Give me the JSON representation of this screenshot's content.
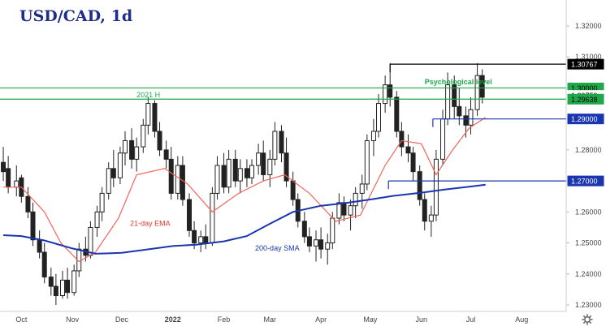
{
  "chart_data": {
    "type": "candlestick",
    "title": "USD/CAD, 1d",
    "ylim": [
      1.227,
      1.324
    ],
    "y_ticks": [
      "1.32000",
      "1.31000",
      "1.30000",
      "1.29000",
      "1.28000",
      "1.27000",
      "1.26000",
      "1.25000",
      "1.24000",
      "1.23000"
    ],
    "x_ticks": [
      "Oct",
      "Nov",
      "Dec",
      "2022",
      "Feb",
      "Mar",
      "Apr",
      "May",
      "Jun",
      "Jul",
      "Aug"
    ],
    "price_tags": [
      {
        "label": "1.30767",
        "value": 1.30767,
        "style": "dark"
      },
      {
        "label": "1.30000",
        "value": 1.3,
        "style": "green"
      },
      {
        "label": "1.29759",
        "value": 1.29759,
        "style": "plain"
      },
      {
        "label": "1.29638",
        "value": 1.29638,
        "style": "green"
      },
      {
        "label": "1.29000",
        "value": 1.29,
        "style": "blue"
      },
      {
        "label": "1.27000",
        "value": 1.27,
        "style": "blue"
      }
    ],
    "levels": [
      {
        "value": 1.30767,
        "color": "#000000",
        "from": "2022-05-13",
        "to": "end"
      },
      {
        "value": 1.3,
        "color": "#1ea84a",
        "from": "start",
        "to": "end"
      },
      {
        "value": 1.29638,
        "color": "#1ea84a",
        "from": "start",
        "to": "end"
      },
      {
        "value": 1.29,
        "color": "#1a35b0",
        "from": "2022-06-08",
        "to": "end"
      },
      {
        "value": 1.27,
        "color": "#1a35b0",
        "from": "2022-05-12",
        "to": "end"
      }
    ],
    "annotations": [
      {
        "text": "Psychological level",
        "color": "#1ea84a",
        "date": "2022-07-14",
        "value": 1.3012
      },
      {
        "text": "2021 H",
        "color": "#1ea84a",
        "date": "2021-12-10",
        "value": 1.297
      },
      {
        "text": "21-day EMA",
        "color": "#e03c31",
        "date": "2021-12-06",
        "value": 1.2555
      },
      {
        "text": "200-day SMA",
        "color": "#1a35b0",
        "date": "2022-02-20",
        "value": 1.2475
      }
    ],
    "series": [
      {
        "name": "21-day EMA",
        "color": "#f2655a",
        "x": [
          "2021-09-20",
          "2021-10-01",
          "2021-10-15",
          "2021-10-25",
          "2021-11-05",
          "2021-11-15",
          "2021-11-29",
          "2021-12-10",
          "2021-12-27",
          "2022-01-10",
          "2022-01-25",
          "2022-02-10",
          "2022-02-25",
          "2022-03-10",
          "2022-03-25",
          "2022-04-10",
          "2022-04-25",
          "2022-05-10",
          "2022-05-20",
          "2022-06-01",
          "2022-06-10",
          "2022-06-20",
          "2022-06-30",
          "2022-07-10"
        ],
        "values": [
          1.268,
          1.268,
          1.26,
          1.25,
          1.244,
          1.247,
          1.258,
          1.272,
          1.274,
          1.269,
          1.26,
          1.266,
          1.27,
          1.272,
          1.266,
          1.257,
          1.259,
          1.275,
          1.283,
          1.282,
          1.272,
          1.28,
          1.287,
          1.2905
        ]
      },
      {
        "name": "200-day SMA",
        "color": "#1a35b0",
        "x": [
          "2021-09-20",
          "2021-10-01",
          "2021-10-15",
          "2021-11-01",
          "2021-11-15",
          "2021-12-01",
          "2021-12-15",
          "2022-01-01",
          "2022-01-15",
          "2022-02-01",
          "2022-02-15",
          "2022-03-01",
          "2022-03-15",
          "2022-04-01",
          "2022-04-15",
          "2022-05-01",
          "2022-05-15",
          "2022-06-01",
          "2022-06-15",
          "2022-07-01",
          "2022-07-10"
        ],
        "values": [
          1.2525,
          1.2522,
          1.2508,
          1.2482,
          1.2465,
          1.2468,
          1.2478,
          1.249,
          1.2494,
          1.2505,
          1.2522,
          1.2562,
          1.26,
          1.262,
          1.2628,
          1.264,
          1.2652,
          1.2662,
          1.2672,
          1.2682,
          1.2688
        ]
      }
    ],
    "candles": [
      [
        "2021-09-20",
        1.276,
        1.281,
        1.27,
        1.273
      ],
      [
        "2021-09-23",
        1.274,
        1.278,
        1.266,
        1.268
      ],
      [
        "2021-09-28",
        1.268,
        1.275,
        1.265,
        1.27
      ],
      [
        "2021-10-01",
        1.271,
        1.272,
        1.263,
        1.265
      ],
      [
        "2021-10-05",
        1.265,
        1.268,
        1.258,
        1.26
      ],
      [
        "2021-10-08",
        1.26,
        1.263,
        1.249,
        1.251
      ],
      [
        "2021-10-12",
        1.251,
        1.254,
        1.245,
        1.247
      ],
      [
        "2021-10-15",
        1.247,
        1.25,
        1.237,
        1.239
      ],
      [
        "2021-10-19",
        1.239,
        1.242,
        1.233,
        1.236
      ],
      [
        "2021-10-22",
        1.236,
        1.24,
        1.23,
        1.233
      ],
      [
        "2021-10-26",
        1.233,
        1.241,
        1.232,
        1.238
      ],
      [
        "2021-10-29",
        1.238,
        1.242,
        1.232,
        1.234
      ],
      [
        "2021-11-02",
        1.234,
        1.243,
        1.233,
        1.241
      ],
      [
        "2021-11-05",
        1.241,
        1.25,
        1.239,
        1.248
      ],
      [
        "2021-11-09",
        1.248,
        1.252,
        1.244,
        1.246
      ],
      [
        "2021-11-12",
        1.246,
        1.257,
        1.245,
        1.255
      ],
      [
        "2021-11-16",
        1.255,
        1.262,
        1.252,
        1.26
      ],
      [
        "2021-11-19",
        1.26,
        1.268,
        1.257,
        1.266
      ],
      [
        "2021-11-23",
        1.266,
        1.276,
        1.264,
        1.274
      ],
      [
        "2021-11-26",
        1.274,
        1.28,
        1.268,
        1.271
      ],
      [
        "2021-11-30",
        1.271,
        1.281,
        1.269,
        1.279
      ],
      [
        "2021-12-03",
        1.279,
        1.286,
        1.275,
        1.283
      ],
      [
        "2021-12-07",
        1.283,
        1.287,
        1.274,
        1.277
      ],
      [
        "2021-12-10",
        1.277,
        1.284,
        1.273,
        1.281
      ],
      [
        "2021-12-14",
        1.281,
        1.29,
        1.279,
        1.288
      ],
      [
        "2021-12-17",
        1.288,
        1.297,
        1.285,
        1.295
      ],
      [
        "2021-12-21",
        1.295,
        1.296,
        1.284,
        1.286
      ],
      [
        "2021-12-24",
        1.286,
        1.289,
        1.278,
        1.28
      ],
      [
        "2021-12-28",
        1.28,
        1.283,
        1.274,
        1.277
      ],
      [
        "2021-12-31",
        1.277,
        1.281,
        1.264,
        1.266
      ],
      [
        "2022-01-04",
        1.266,
        1.278,
        1.264,
        1.275
      ],
      [
        "2022-01-07",
        1.275,
        1.278,
        1.262,
        1.264
      ],
      [
        "2022-01-11",
        1.264,
        1.266,
        1.252,
        1.254
      ],
      [
        "2022-01-14",
        1.254,
        1.257,
        1.248,
        1.25
      ],
      [
        "2022-01-18",
        1.25,
        1.254,
        1.247,
        1.252
      ],
      [
        "2022-01-21",
        1.252,
        1.256,
        1.248,
        1.25
      ],
      [
        "2022-01-25",
        1.25,
        1.268,
        1.249,
        1.266
      ],
      [
        "2022-01-28",
        1.266,
        1.278,
        1.264,
        1.275
      ],
      [
        "2022-02-01",
        1.275,
        1.279,
        1.266,
        1.268
      ],
      [
        "2022-02-04",
        1.268,
        1.28,
        1.266,
        1.277
      ],
      [
        "2022-02-08",
        1.277,
        1.28,
        1.268,
        1.27
      ],
      [
        "2022-02-11",
        1.27,
        1.277,
        1.266,
        1.274
      ],
      [
        "2022-02-15",
        1.274,
        1.277,
        1.268,
        1.271
      ],
      [
        "2022-02-18",
        1.271,
        1.277,
        1.269,
        1.275
      ],
      [
        "2022-02-22",
        1.275,
        1.282,
        1.272,
        1.279
      ],
      [
        "2022-02-25",
        1.279,
        1.283,
        1.27,
        1.272
      ],
      [
        "2022-03-01",
        1.272,
        1.28,
        1.268,
        1.277
      ],
      [
        "2022-03-04",
        1.277,
        1.289,
        1.275,
        1.286
      ],
      [
        "2022-03-08",
        1.286,
        1.288,
        1.276,
        1.279
      ],
      [
        "2022-03-11",
        1.279,
        1.284,
        1.268,
        1.27
      ],
      [
        "2022-03-15",
        1.27,
        1.273,
        1.262,
        1.264
      ],
      [
        "2022-03-18",
        1.264,
        1.266,
        1.255,
        1.257
      ],
      [
        "2022-03-22",
        1.257,
        1.26,
        1.25,
        1.252
      ],
      [
        "2022-03-25",
        1.252,
        1.255,
        1.247,
        1.249
      ],
      [
        "2022-03-29",
        1.249,
        1.254,
        1.244,
        1.251
      ],
      [
        "2022-04-01",
        1.251,
        1.255,
        1.245,
        1.248
      ],
      [
        "2022-04-05",
        1.248,
        1.253,
        1.243,
        1.25
      ],
      [
        "2022-04-08",
        1.25,
        1.26,
        1.248,
        1.258
      ],
      [
        "2022-04-12",
        1.258,
        1.266,
        1.256,
        1.263
      ],
      [
        "2022-04-15",
        1.263,
        1.265,
        1.257,
        1.259
      ],
      [
        "2022-04-19",
        1.259,
        1.264,
        1.254,
        1.262
      ],
      [
        "2022-04-22",
        1.262,
        1.268,
        1.258,
        1.266
      ],
      [
        "2022-04-26",
        1.266,
        1.272,
        1.261,
        1.269
      ],
      [
        "2022-04-29",
        1.269,
        1.285,
        1.267,
        1.283
      ],
      [
        "2022-05-03",
        1.283,
        1.29,
        1.278,
        1.286
      ],
      [
        "2022-05-06",
        1.286,
        1.298,
        1.284,
        1.295
      ],
      [
        "2022-05-10",
        1.295,
        1.304,
        1.292,
        1.301
      ],
      [
        "2022-05-13",
        1.301,
        1.308,
        1.294,
        1.297
      ],
      [
        "2022-05-17",
        1.297,
        1.299,
        1.284,
        1.286
      ],
      [
        "2022-05-20",
        1.286,
        1.289,
        1.278,
        1.281
      ],
      [
        "2022-05-24",
        1.281,
        1.285,
        1.276,
        1.279
      ],
      [
        "2022-05-27",
        1.279,
        1.281,
        1.27,
        1.273
      ],
      [
        "2022-05-31",
        1.273,
        1.275,
        1.262,
        1.264
      ],
      [
        "2022-06-03",
        1.264,
        1.266,
        1.254,
        1.257
      ],
      [
        "2022-06-07",
        1.257,
        1.262,
        1.252,
        1.259
      ],
      [
        "2022-06-10",
        1.259,
        1.28,
        1.257,
        1.277
      ],
      [
        "2022-06-14",
        1.277,
        1.293,
        1.275,
        1.29
      ],
      [
        "2022-06-17",
        1.29,
        1.305,
        1.288,
        1.301
      ],
      [
        "2022-06-21",
        1.301,
        1.304,
        1.29,
        1.294
      ],
      [
        "2022-06-24",
        1.294,
        1.3,
        1.288,
        1.291
      ],
      [
        "2022-06-28",
        1.291,
        1.294,
        1.284,
        1.288
      ],
      [
        "2022-07-01",
        1.288,
        1.297,
        1.285,
        1.293
      ],
      [
        "2022-07-05",
        1.293,
        1.308,
        1.291,
        1.304
      ],
      [
        "2022-07-08",
        1.304,
        1.306,
        1.295,
        1.297
      ]
    ]
  }
}
